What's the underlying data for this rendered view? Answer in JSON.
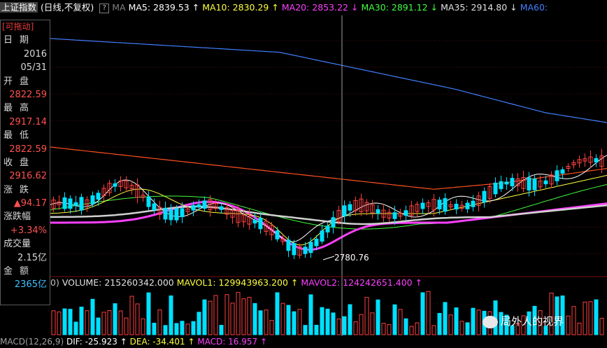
{
  "header": {
    "index_name": "上证指数",
    "mode": "(日线,不复权)",
    "help_glyph": "?",
    "ma_label": "MA",
    "ma5": "MA5: 2839.53",
    "ma10": "MA10: 2830.29",
    "ma20": "MA20: 2853.22",
    "ma30": "MA30: 2891.12",
    "ma35": "MA35: 2914.80",
    "ma60": "MA60:",
    "arrow_up": "↑",
    "arrow_down": "↓"
  },
  "sidebar": {
    "drag_label": "[可拖动]",
    "date_label": "日期",
    "year": "2016",
    "date": "05/31",
    "open_label": "开盘",
    "open": "2822.59",
    "high_label": "最高",
    "high": "2917.14",
    "low_label": "最低",
    "low": "2822.59",
    "close_label": "收盘",
    "close": "2916.62",
    "change_label": "涨跌",
    "change": "▲94.17",
    "pct_label": "涨跌幅",
    "pct": "+3.34%",
    "volume_label": "成交量",
    "volume": "2.15亿",
    "amount_label": "金额",
    "amount": "2365亿"
  },
  "annotation": {
    "low_marker": "2780.76"
  },
  "volume_bar": {
    "prefix": "0)",
    "volume": "VOLUME: 215260342.000",
    "mavol1": "MAVOL1: 129943963.200",
    "mavol2": "MAVOL2: 124242651.400",
    "arrow_up": "↑"
  },
  "macd_bar": {
    "label": "MACD(12,26,9)",
    "dif": "DIF: -25.923",
    "dea": "DEA: -34.401",
    "macd": "MACD: 16.957",
    "arrow_up": "↑"
  },
  "watermark": "局外人的视界",
  "colors": {
    "up": "#ff4040",
    "down": "#00e0ff",
    "ma5": "#ffffff",
    "ma10": "#ffff40",
    "ma20": "#ff40ff",
    "ma30": "#40ff40",
    "ma60": "#4080ff",
    "ma120": "#ff5020"
  },
  "chart_data": {
    "type": "candlestick",
    "series_names": [
      "MA5",
      "MA10",
      "MA20",
      "MA30",
      "MA35",
      "MA60"
    ],
    "crosshair_date": "2016/05/31",
    "low_annotation": 2780.76
  }
}
